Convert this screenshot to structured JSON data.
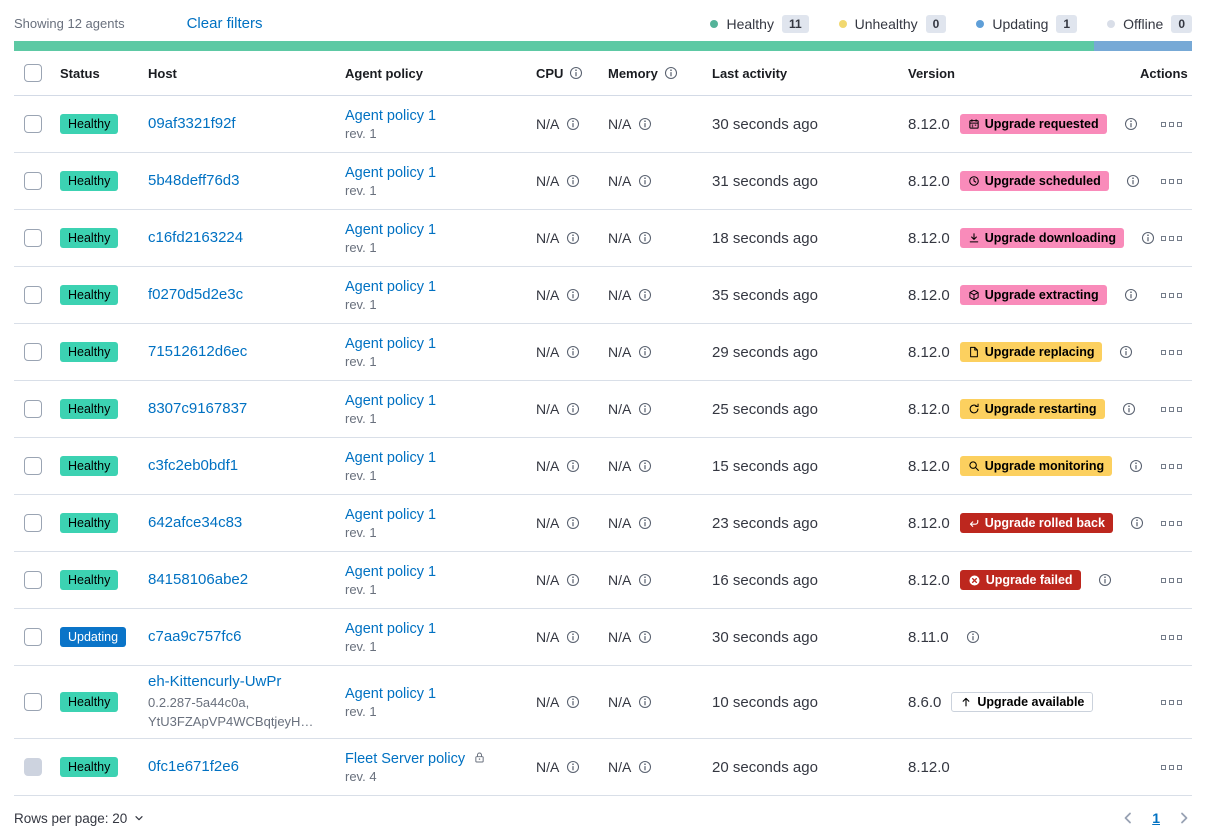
{
  "toolbar": {
    "showing": "Showing 12 agents",
    "clear_filters": "Clear filters"
  },
  "legend": [
    {
      "label": "Healthy",
      "count": "11",
      "color": "#54B399"
    },
    {
      "label": "Unhealthy",
      "count": "0",
      "color": "#F1D86F"
    },
    {
      "label": "Updating",
      "count": "1",
      "color": "#5F9FD8"
    },
    {
      "label": "Offline",
      "count": "0",
      "color": "#D9DEE8"
    }
  ],
  "progress": {
    "segments": [
      {
        "color": "#5DC9A4",
        "pct": 91.7
      },
      {
        "color": "#77A9D6",
        "pct": 8.3
      }
    ]
  },
  "columns": {
    "status": "Status",
    "host": "Host",
    "policy": "Agent policy",
    "cpu": "CPU",
    "memory": "Memory",
    "last_activity": "Last activity",
    "version": "Version",
    "actions": "Actions"
  },
  "rows": [
    {
      "status": {
        "label": "Healthy",
        "variant": "healthy"
      },
      "host": "09af3321f92f",
      "policy": {
        "name": "Agent policy 1",
        "rev": "rev. 1",
        "locked": false
      },
      "cpu": "N/A",
      "memory": "N/A",
      "last_activity": "30 seconds ago",
      "version": "8.12.0",
      "upgrade": {
        "label": "Upgrade requested",
        "variant": "accent",
        "icon": "calendar-icon"
      },
      "version_info": true
    },
    {
      "status": {
        "label": "Healthy",
        "variant": "healthy"
      },
      "host": "5b48deff76d3",
      "policy": {
        "name": "Agent policy 1",
        "rev": "rev. 1",
        "locked": false
      },
      "cpu": "N/A",
      "memory": "N/A",
      "last_activity": "31 seconds ago",
      "version": "8.12.0",
      "upgrade": {
        "label": "Upgrade scheduled",
        "variant": "accent",
        "icon": "clock-icon"
      },
      "version_info": true
    },
    {
      "status": {
        "label": "Healthy",
        "variant": "healthy"
      },
      "host": "c16fd2163224",
      "policy": {
        "name": "Agent policy 1",
        "rev": "rev. 1",
        "locked": false
      },
      "cpu": "N/A",
      "memory": "N/A",
      "last_activity": "18 seconds ago",
      "version": "8.12.0",
      "upgrade": {
        "label": "Upgrade downloading",
        "variant": "accent",
        "icon": "download-icon"
      },
      "version_info": true
    },
    {
      "status": {
        "label": "Healthy",
        "variant": "healthy"
      },
      "host": "f0270d5d2e3c",
      "policy": {
        "name": "Agent policy 1",
        "rev": "rev. 1",
        "locked": false
      },
      "cpu": "N/A",
      "memory": "N/A",
      "last_activity": "35 seconds ago",
      "version": "8.12.0",
      "upgrade": {
        "label": "Upgrade extracting",
        "variant": "accent",
        "icon": "package-icon"
      },
      "version_info": true
    },
    {
      "status": {
        "label": "Healthy",
        "variant": "healthy"
      },
      "host": "71512612d6ec",
      "policy": {
        "name": "Agent policy 1",
        "rev": "rev. 1",
        "locked": false
      },
      "cpu": "N/A",
      "memory": "N/A",
      "last_activity": "29 seconds ago",
      "version": "8.12.0",
      "upgrade": {
        "label": "Upgrade replacing",
        "variant": "warning",
        "icon": "document-icon"
      },
      "version_info": true
    },
    {
      "status": {
        "label": "Healthy",
        "variant": "healthy"
      },
      "host": "8307c9167837",
      "policy": {
        "name": "Agent policy 1",
        "rev": "rev. 1",
        "locked": false
      },
      "cpu": "N/A",
      "memory": "N/A",
      "last_activity": "25 seconds ago",
      "version": "8.12.0",
      "upgrade": {
        "label": "Upgrade restarting",
        "variant": "warning",
        "icon": "refresh-icon"
      },
      "version_info": true
    },
    {
      "status": {
        "label": "Healthy",
        "variant": "healthy"
      },
      "host": "c3fc2eb0bdf1",
      "policy": {
        "name": "Agent policy 1",
        "rev": "rev. 1",
        "locked": false
      },
      "cpu": "N/A",
      "memory": "N/A",
      "last_activity": "15 seconds ago",
      "version": "8.12.0",
      "upgrade": {
        "label": "Upgrade monitoring",
        "variant": "warning",
        "icon": "inspect-icon"
      },
      "version_info": true
    },
    {
      "status": {
        "label": "Healthy",
        "variant": "healthy"
      },
      "host": "642afce34c83",
      "policy": {
        "name": "Agent policy 1",
        "rev": "rev. 1",
        "locked": false
      },
      "cpu": "N/A",
      "memory": "N/A",
      "last_activity": "23 seconds ago",
      "version": "8.12.0",
      "upgrade": {
        "label": "Upgrade rolled back",
        "variant": "danger",
        "icon": "return-icon"
      },
      "version_info": true
    },
    {
      "status": {
        "label": "Healthy",
        "variant": "healthy"
      },
      "host": "84158106abe2",
      "policy": {
        "name": "Agent policy 1",
        "rev": "rev. 1",
        "locked": false
      },
      "cpu": "N/A",
      "memory": "N/A",
      "last_activity": "16 seconds ago",
      "version": "8.12.0",
      "upgrade": {
        "label": "Upgrade failed",
        "variant": "danger",
        "icon": "cross-circle-icon"
      },
      "version_info": true
    },
    {
      "status": {
        "label": "Updating",
        "variant": "primary"
      },
      "host": "c7aa9c757fc6",
      "policy": {
        "name": "Agent policy 1",
        "rev": "rev. 1",
        "locked": false
      },
      "cpu": "N/A",
      "memory": "N/A",
      "last_activity": "30 seconds ago",
      "version": "8.11.0",
      "upgrade": null,
      "version_info": true
    },
    {
      "status": {
        "label": "Healthy",
        "variant": "healthy"
      },
      "host": "eh-Kittencurly-UwPr",
      "host_sub": "0.2.287-5a44c0a,\nYtU3FZApVP4WCBqtjeyH…",
      "policy": {
        "name": "Agent policy 1",
        "rev": "rev. 1",
        "locked": false
      },
      "cpu": "N/A",
      "memory": "N/A",
      "last_activity": "10 seconds ago",
      "version": "8.6.0",
      "upgrade": {
        "label": "Upgrade available",
        "variant": "hollow",
        "icon": "arrow-up-icon"
      },
      "version_info": false
    },
    {
      "status": {
        "label": "Healthy",
        "variant": "healthy"
      },
      "host": "0fc1e671f2e6",
      "policy": {
        "name": "Fleet Server policy",
        "rev": "rev. 4",
        "locked": true
      },
      "cpu": "N/A",
      "memory": "N/A",
      "last_activity": "20 seconds ago",
      "version": "8.12.0",
      "upgrade": null,
      "version_info": false,
      "checkbox_disabled": true
    }
  ],
  "footer": {
    "rows_per_page": "Rows per page: 20",
    "page": "1"
  }
}
